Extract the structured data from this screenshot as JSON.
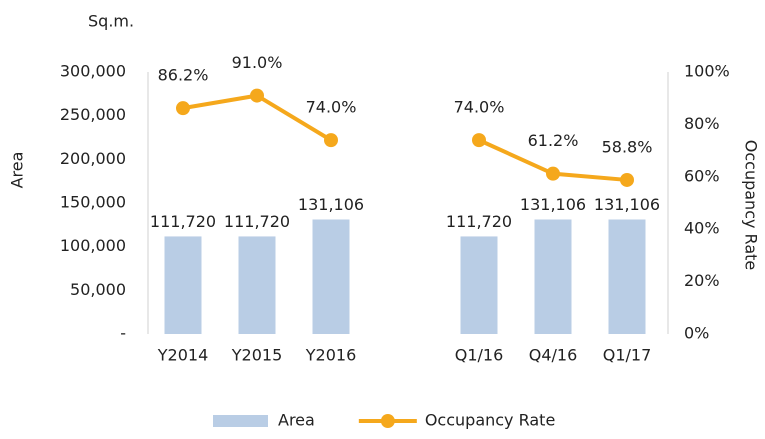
{
  "chart_data": {
    "type": "bar",
    "unit_label": "Sq.m.",
    "y_label": "Area",
    "y2_label": "Occupancy Rate",
    "categories": [
      "Y2014",
      "Y2015",
      "Y2016",
      null,
      "Q1/16",
      "Q4/16",
      "Q1/17"
    ],
    "series": [
      {
        "name": "Area",
        "type": "bar",
        "color": "#b9cde5",
        "values": [
          111720,
          111720,
          131106,
          null,
          111720,
          131106,
          131106
        ],
        "value_labels": [
          "111,720",
          "111,720",
          "131,106",
          null,
          "111,720",
          "131,106",
          "131,106"
        ]
      },
      {
        "name": "Occupancy Rate",
        "type": "line",
        "axis": "y2",
        "color": "#f5a81c",
        "values": [
          86.2,
          91.0,
          74.0,
          null,
          74.0,
          61.2,
          58.8
        ],
        "value_labels": [
          "86.2%",
          "91.0%",
          "74.0%",
          null,
          "74.0%",
          "61.2%",
          "58.8%"
        ]
      }
    ],
    "ylim": [
      0,
      300000
    ],
    "yticks": [
      {
        "value": 0,
        "label": "-"
      },
      {
        "value": 50000,
        "label": "50,000"
      },
      {
        "value": 100000,
        "label": "100,000"
      },
      {
        "value": 150000,
        "label": "150,000"
      },
      {
        "value": 200000,
        "label": "200,000"
      },
      {
        "value": 250000,
        "label": "250,000"
      },
      {
        "value": 300000,
        "label": "300,000"
      }
    ],
    "y2lim": [
      0,
      100
    ],
    "y2ticks": [
      {
        "value": 0,
        "label": "0%"
      },
      {
        "value": 20,
        "label": "20%"
      },
      {
        "value": 40,
        "label": "40%"
      },
      {
        "value": 60,
        "label": "60%"
      },
      {
        "value": 80,
        "label": "80%"
      },
      {
        "value": 100,
        "label": "100%"
      }
    ],
    "legend": "bottom"
  }
}
